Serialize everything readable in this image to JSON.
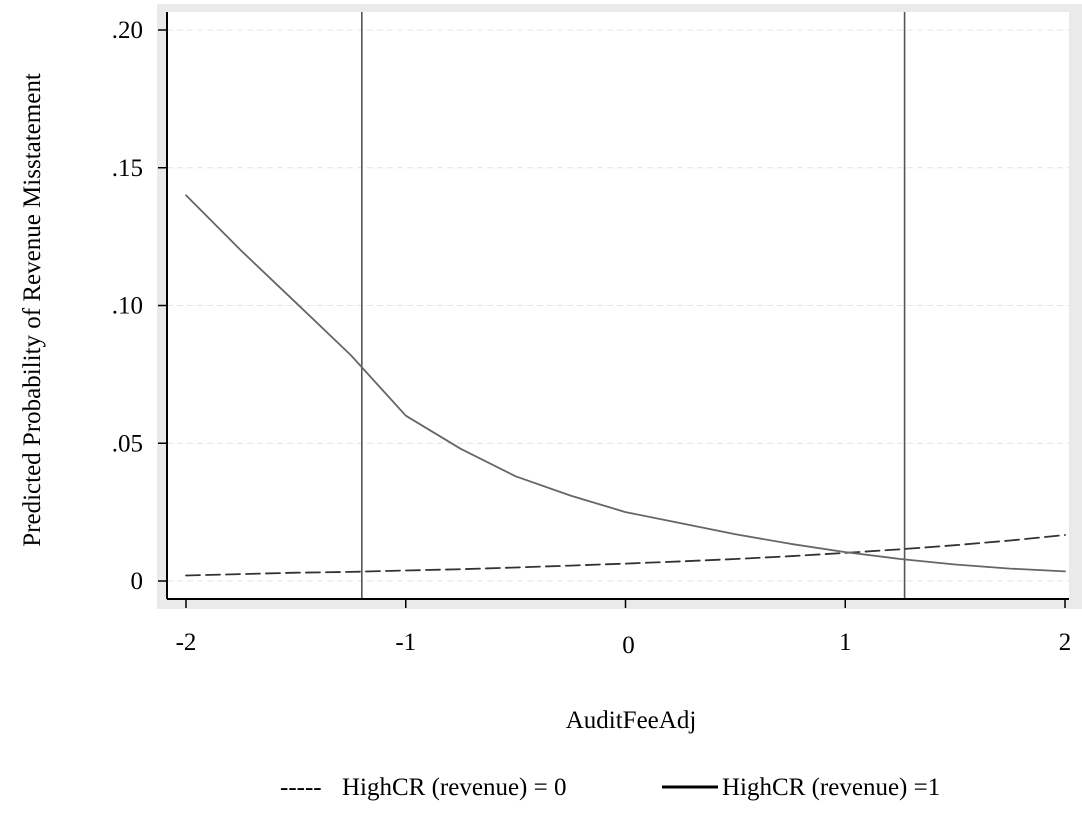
{
  "chart_data": {
    "type": "line",
    "title": "",
    "xlabel": "AuditFeeAdj",
    "ylabel": "Predicted Probability of Revenue Misstatement",
    "xlim": [
      -2,
      2
    ],
    "ylim": [
      0,
      0.2
    ],
    "x_ticks": [
      -2,
      -1,
      0,
      1,
      2
    ],
    "x_tick_labels": [
      "-2",
      "-1",
      "0",
      "1",
      "2"
    ],
    "y_ticks": [
      0,
      0.05,
      0.1,
      0.15,
      0.2
    ],
    "y_tick_labels": [
      "0",
      ".05",
      ".10",
      ".15",
      ".20"
    ],
    "grid": true,
    "legend_position": "bottom",
    "reference_lines_x": [
      -1.2,
      1.27
    ],
    "x": [
      -2,
      -1.75,
      -1.5,
      -1.25,
      -1,
      -0.75,
      -0.5,
      -0.25,
      0,
      0.25,
      0.5,
      0.75,
      1,
      1.25,
      1.5,
      1.75,
      2
    ],
    "series": [
      {
        "name": "HighCR (revenue) = 0",
        "legend_marker": "-----",
        "style": "dashed",
        "color": "#333333",
        "values": [
          0.002,
          0.0025,
          0.003,
          0.0033,
          0.0038,
          0.0043,
          0.0049,
          0.0056,
          0.0063,
          0.0071,
          0.008,
          0.009,
          0.0102,
          0.0115,
          0.013,
          0.0147,
          0.0167
        ]
      },
      {
        "name": "HighCR (revenue) =1",
        "style": "solid",
        "color": "#666666",
        "values": [
          0.14,
          0.12,
          0.101,
          0.082,
          0.06,
          0.048,
          0.038,
          0.031,
          0.025,
          0.021,
          0.017,
          0.0135,
          0.0105,
          0.008,
          0.006,
          0.0045,
          0.0035
        ]
      }
    ]
  },
  "colors": {
    "outer_background": "#eaeaea",
    "plot_background": "#ffffff",
    "grid": "#e4e4e4",
    "axis": "#000000",
    "reference_line": "#555555"
  }
}
